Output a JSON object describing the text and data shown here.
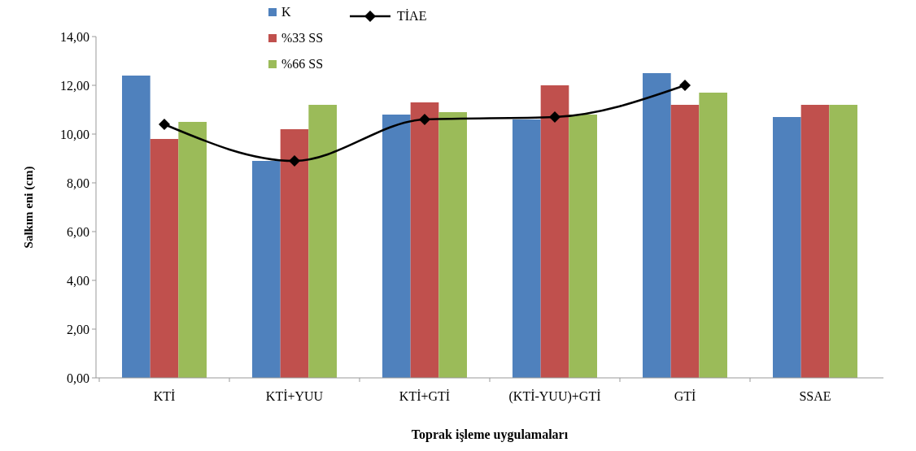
{
  "chart_data": {
    "type": "bar",
    "xlabel": "Toprak işleme uygulamaları",
    "ylabel": "Salkım eni (cm)",
    "categories": [
      "KTİ",
      "KTİ+YUU",
      "KTİ+GTİ",
      "(KTİ-YUU)+GTİ",
      "GTİ",
      "SSAE"
    ],
    "series": [
      {
        "name": "K",
        "color": "#4f81bd",
        "values": [
          12.4,
          8.9,
          10.8,
          10.6,
          12.5,
          10.7
        ]
      },
      {
        "name": "%33 SS",
        "color": "#c0504d",
        "values": [
          9.8,
          10.2,
          11.3,
          12.0,
          11.2,
          11.2
        ]
      },
      {
        "name": "%66 SS",
        "color": "#9bbb59",
        "values": [
          10.5,
          11.2,
          10.9,
          10.8,
          11.7,
          11.2
        ]
      },
      {
        "name": "TİAE",
        "type": "line",
        "color": "#000000",
        "marker": "diamond",
        "values": [
          10.4,
          8.9,
          10.6,
          10.7,
          12.0,
          null
        ]
      }
    ],
    "ylim": [
      0,
      14
    ],
    "yticks": [
      {
        "value": 0,
        "label": "0,00"
      },
      {
        "value": 2,
        "label": "2,00"
      },
      {
        "value": 4,
        "label": "4,00"
      },
      {
        "value": 6,
        "label": "6,00"
      },
      {
        "value": 8,
        "label": "8,00"
      },
      {
        "value": 10,
        "label": "10,00"
      },
      {
        "value": 12,
        "label": "12,00"
      },
      {
        "value": 14,
        "label": "14,00"
      }
    ],
    "grid": false,
    "legend": "top"
  }
}
